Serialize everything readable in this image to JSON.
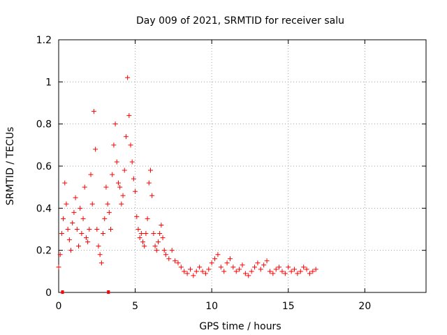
{
  "chart_data": {
    "type": "scatter",
    "title": "Day 009 of 2021, SRMTID for receiver salu",
    "xlabel": "GPS time / hours",
    "ylabel": "SRMTID / TECUs",
    "xlim": [
      0,
      24
    ],
    "ylim": [
      0,
      1.2
    ],
    "xticks": [
      0,
      5,
      10,
      15,
      20
    ],
    "xtick_labels": [
      "0",
      "5",
      "10",
      "15",
      "20"
    ],
    "yticks": [
      0,
      0.2,
      0.4,
      0.6,
      0.8,
      1.0,
      1.2
    ],
    "ytick_labels": [
      "0",
      "0.2",
      "0.4",
      "0.6",
      "0.8",
      "1",
      "1.2"
    ],
    "grid": true,
    "marker": "+",
    "color": "#ff0000",
    "zero_markers": [
      0.25,
      3.25
    ],
    "series": [
      {
        "name": "SRMTID",
        "x": [
          0.0,
          0.1,
          0.2,
          0.3,
          0.4,
          0.5,
          0.6,
          0.7,
          0.8,
          0.9,
          1.0,
          1.1,
          1.2,
          1.3,
          1.4,
          1.5,
          1.6,
          1.7,
          1.8,
          1.9,
          2.0,
          2.1,
          2.2,
          2.3,
          2.4,
          2.5,
          2.6,
          2.7,
          2.8,
          2.9,
          3.0,
          3.1,
          3.2,
          3.3,
          3.4,
          3.5,
          3.6,
          3.7,
          3.8,
          3.9,
          4.0,
          4.1,
          4.2,
          4.3,
          4.4,
          4.5,
          4.6,
          4.7,
          4.8,
          4.9,
          5.0,
          5.1,
          5.2,
          5.3,
          5.4,
          5.5,
          5.6,
          5.7,
          5.8,
          5.9,
          6.0,
          6.1,
          6.2,
          6.3,
          6.4,
          6.5,
          6.6,
          6.7,
          6.8,
          6.9,
          7.0,
          7.2,
          7.4,
          7.6,
          7.8,
          8.0,
          8.2,
          8.4,
          8.6,
          8.8,
          9.0,
          9.2,
          9.4,
          9.6,
          9.8,
          10.0,
          10.2,
          10.4,
          10.6,
          10.8,
          11.0,
          11.2,
          11.4,
          11.6,
          11.8,
          12.0,
          12.2,
          12.4,
          12.6,
          12.8,
          13.0,
          13.2,
          13.4,
          13.6,
          13.8,
          14.0,
          14.2,
          14.4,
          14.6,
          14.8,
          15.0,
          15.2,
          15.4,
          15.6,
          15.8,
          16.0,
          16.2,
          16.4,
          16.6,
          16.8
        ],
        "y": [
          0.12,
          0.18,
          0.28,
          0.35,
          0.52,
          0.42,
          0.3,
          0.25,
          0.2,
          0.33,
          0.38,
          0.45,
          0.3,
          0.22,
          0.4,
          0.28,
          0.35,
          0.5,
          0.26,
          0.24,
          0.3,
          0.56,
          0.42,
          0.86,
          0.68,
          0.3,
          0.22,
          0.18,
          0.14,
          0.28,
          0.35,
          0.5,
          0.42,
          0.38,
          0.3,
          0.56,
          0.7,
          0.8,
          0.62,
          0.52,
          0.5,
          0.42,
          0.46,
          0.58,
          0.74,
          1.02,
          0.84,
          0.7,
          0.62,
          0.54,
          0.48,
          0.36,
          0.3,
          0.26,
          0.28,
          0.24,
          0.22,
          0.28,
          0.35,
          0.52,
          0.58,
          0.46,
          0.28,
          0.22,
          0.2,
          0.24,
          0.28,
          0.32,
          0.26,
          0.2,
          0.18,
          0.16,
          0.2,
          0.15,
          0.14,
          0.12,
          0.1,
          0.09,
          0.11,
          0.08,
          0.1,
          0.12,
          0.1,
          0.09,
          0.11,
          0.14,
          0.16,
          0.18,
          0.12,
          0.1,
          0.14,
          0.16,
          0.12,
          0.1,
          0.11,
          0.13,
          0.09,
          0.08,
          0.1,
          0.12,
          0.14,
          0.11,
          0.13,
          0.15,
          0.1,
          0.09,
          0.11,
          0.12,
          0.1,
          0.09,
          0.12,
          0.1,
          0.11,
          0.09,
          0.1,
          0.12,
          0.11,
          0.09,
          0.1,
          0.11
        ]
      }
    ]
  }
}
